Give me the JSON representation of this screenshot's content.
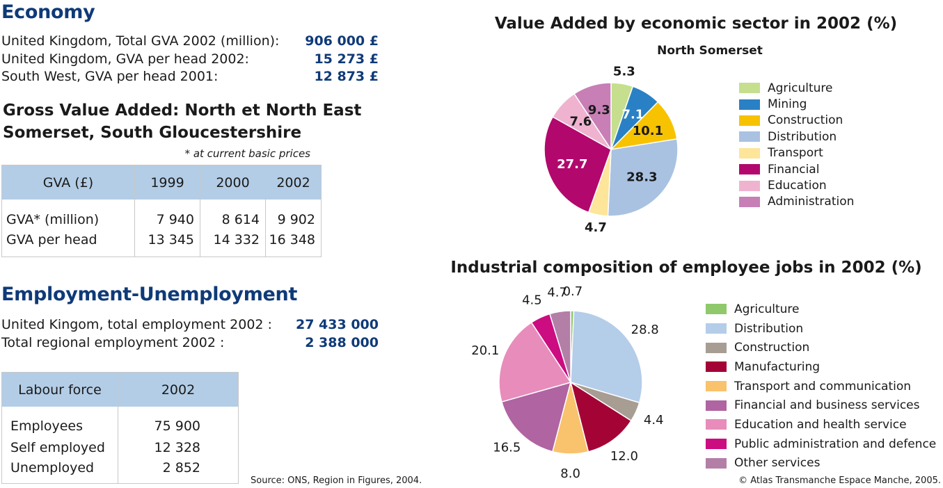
{
  "economy": {
    "title": "Economy",
    "stats": [
      {
        "label": "United Kingdom, Total GVA 2002 (million):",
        "value": "906 000 £"
      },
      {
        "label": "United Kingdom, GVA per head 2002:",
        "value": "15 273 £"
      },
      {
        "label": "South West, GVA per head 2001:",
        "value": "12 873 £"
      }
    ]
  },
  "gva": {
    "title_line1": "Gross Value Added: North et North East",
    "title_line2": "Somerset, South Gloucestershire",
    "note": "* at current basic prices",
    "headers": [
      "GVA (£)",
      "1999",
      "2000",
      "2002"
    ],
    "rows": [
      [
        "GVA* (million)",
        "7 940",
        "8 614",
        "9 902"
      ],
      [
        "GVA per head",
        "13 345",
        "14 332",
        "16 348"
      ]
    ]
  },
  "employment": {
    "title": "Employment-Unemployment",
    "stats": [
      {
        "label": "United Kingom, total employment 2002 :",
        "value": "27 433 000"
      },
      {
        "label": "Total regional employment 2002 :",
        "value": "2 388 000"
      }
    ]
  },
  "labour": {
    "headers": [
      "Labour force",
      "2002"
    ],
    "rows": [
      [
        "Employees",
        "75 900"
      ],
      [
        "Self employed",
        "12 328"
      ],
      [
        "Unemployed",
        "2 852"
      ]
    ]
  },
  "source": "Source: ONS, Region in Figures, 2004.",
  "copyright": "© Atlas Transmanche Espace Manche, 2005.",
  "chart_data": [
    {
      "type": "pie",
      "title": "Value Added by economic sector in 2002 (%)",
      "subtitle": "North Somerset",
      "categories": [
        "Agriculture",
        "Mining",
        "Construction",
        "Distribution",
        "Transport",
        "Financial",
        "Education",
        "Administration"
      ],
      "values": [
        5.3,
        7.1,
        10.1,
        28.3,
        4.7,
        27.7,
        7.6,
        9.3
      ],
      "labels": [
        "5.3",
        "7.1",
        "10.1",
        "28.3",
        "4.7",
        "27.7",
        "7.6",
        "9.3"
      ],
      "colors": [
        "#c5df8e",
        "#2a80c4",
        "#f7c200",
        "#a9c2e2",
        "#fde59a",
        "#b2086d",
        "#efb3d0",
        "#c77fb6"
      ],
      "legend_position": "right"
    },
    {
      "type": "pie",
      "title": "Industrial composition of employee jobs in 2002 (%)",
      "categories": [
        "Agriculture",
        "Distribution",
        "Construction",
        "Manufacturing",
        "Transport and communication",
        "Financial and business services",
        "Education and health service",
        "Public administration and defence",
        "Other services"
      ],
      "values": [
        0.7,
        28.8,
        4.4,
        12.0,
        8.0,
        16.5,
        20.1,
        4.5,
        4.7
      ],
      "labels": [
        "0.7",
        "28.8",
        "4.4",
        "12.0",
        "8.0",
        "16.5",
        "20.1",
        "4.5",
        "4.7"
      ],
      "colors": [
        "#8fc96c",
        "#b4cde9",
        "#a79d92",
        "#a40336",
        "#f9c26c",
        "#b064a2",
        "#e88cbb",
        "#cc0c81",
        "#b37fa7"
      ],
      "legend_position": "right"
    }
  ]
}
